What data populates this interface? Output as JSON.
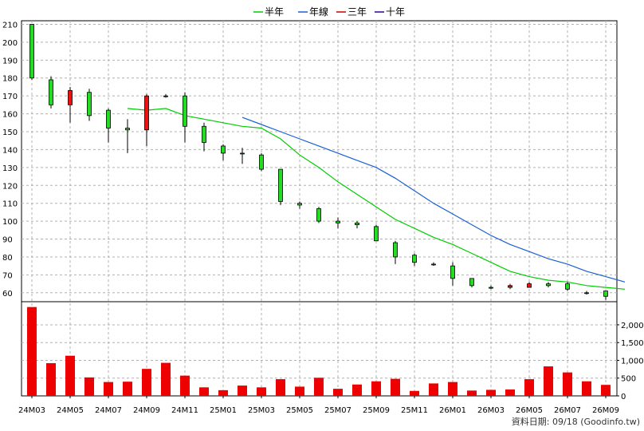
{
  "chart_data": {
    "type": "candlestick-with-volume",
    "legend": [
      {
        "name": "半年",
        "color": "#00cc00"
      },
      {
        "name": "年線",
        "color": "#1a5fd6"
      },
      {
        "name": "三年",
        "color": "#cc0000"
      },
      {
        "name": "十年",
        "color": "#330099"
      }
    ],
    "price_axis": {
      "ylim": [
        55,
        212
      ],
      "ticks": [
        60,
        70,
        80,
        90,
        100,
        110,
        120,
        130,
        140,
        150,
        160,
        170,
        180,
        190,
        200,
        210
      ]
    },
    "volume_axis": {
      "ylim": [
        0,
        2650
      ],
      "ticks": [
        0,
        500,
        1000,
        1500,
        2000
      ],
      "tick_labels": [
        "0",
        "500",
        "1,000",
        "1,500",
        "2,000"
      ]
    },
    "x_labels": [
      "24M03",
      "24M05",
      "24M07",
      "24M09",
      "24M11",
      "25M01",
      "25M03",
      "25M05",
      "25M07",
      "25M09",
      "25M11",
      "26M01",
      "26M03",
      "26M05",
      "26M07",
      "26M09"
    ],
    "candles": [
      {
        "m": "24M03",
        "o": 180,
        "h": 210,
        "l": 179,
        "c": 210
      },
      {
        "m": "24M04",
        "o": 165,
        "h": 181,
        "l": 163,
        "c": 179
      },
      {
        "m": "24M05",
        "o": 173,
        "h": 175,
        "l": 155,
        "c": 165
      },
      {
        "m": "24M06",
        "o": 159,
        "h": 174,
        "l": 156,
        "c": 172
      },
      {
        "m": "24M07",
        "o": 152,
        "h": 163,
        "l": 144,
        "c": 162
      },
      {
        "m": "24M08",
        "o": 151,
        "h": 157,
        "l": 138,
        "c": 152
      },
      {
        "m": "24M09",
        "o": 170,
        "h": 171,
        "l": 142,
        "c": 151
      },
      {
        "m": "24M10",
        "o": 170,
        "h": 171,
        "l": 169,
        "c": 170
      },
      {
        "m": "24M11",
        "o": 153,
        "h": 172,
        "l": 144,
        "c": 170
      },
      {
        "m": "24M12",
        "o": 144,
        "h": 155,
        "l": 139,
        "c": 153
      },
      {
        "m": "25M01",
        "o": 138,
        "h": 143,
        "l": 134,
        "c": 142
      },
      {
        "m": "25M02",
        "o": 138,
        "h": 141,
        "l": 132,
        "c": 138
      },
      {
        "m": "25M03",
        "o": 129,
        "h": 138,
        "l": 128,
        "c": 137
      },
      {
        "m": "25M04",
        "o": 111,
        "h": 129,
        "l": 109,
        "c": 129
      },
      {
        "m": "25M05",
        "o": 109,
        "h": 111,
        "l": 107,
        "c": 110
      },
      {
        "m": "25M06",
        "o": 100,
        "h": 108,
        "l": 99,
        "c": 107
      },
      {
        "m": "25M07",
        "o": 99,
        "h": 102,
        "l": 96,
        "c": 100
      },
      {
        "m": "25M08",
        "o": 98,
        "h": 100,
        "l": 96,
        "c": 99
      },
      {
        "m": "25M09",
        "o": 89,
        "h": 98,
        "l": 89,
        "c": 97
      },
      {
        "m": "25M10",
        "o": 80,
        "h": 89,
        "l": 76,
        "c": 88
      },
      {
        "m": "25M11",
        "o": 77,
        "h": 82,
        "l": 75,
        "c": 81
      },
      {
        "m": "25M12",
        "o": 76,
        "h": 77,
        "l": 75,
        "c": 76
      },
      {
        "m": "26M01",
        "o": 68,
        "h": 77,
        "l": 64,
        "c": 75
      },
      {
        "m": "26M02",
        "o": 64,
        "h": 68,
        "l": 63,
        "c": 68
      },
      {
        "m": "26M03",
        "o": 63,
        "h": 64,
        "l": 62,
        "c": 63
      },
      {
        "m": "26M04",
        "o": 64,
        "h": 65,
        "l": 62,
        "c": 63
      },
      {
        "m": "26M05",
        "o": 65,
        "h": 66,
        "l": 63,
        "c": 63
      },
      {
        "m": "26M06",
        "o": 64,
        "h": 66,
        "l": 63,
        "c": 65
      },
      {
        "m": "26M07",
        "o": 62,
        "h": 66,
        "l": 61,
        "c": 65
      },
      {
        "m": "26M08",
        "o": 60,
        "h": 61,
        "l": 59,
        "c": 60
      },
      {
        "m": "26M09",
        "o": 58,
        "h": 61,
        "l": 56,
        "c": 61
      }
    ],
    "volume": [
      2500,
      920,
      1130,
      520,
      390,
      400,
      760,
      930,
      570,
      240,
      160,
      290,
      240,
      470,
      260,
      510,
      200,
      320,
      410,
      480,
      140,
      350,
      390,
      150,
      170,
      180,
      470,
      830,
      660,
      410,
      310
    ],
    "ma_series": [
      {
        "name": "半年",
        "start_index": 5,
        "values": [
          163,
          162,
          163,
          159,
          157,
          155,
          153,
          152,
          146,
          137,
          130,
          122,
          115,
          108,
          101,
          96,
          91,
          87,
          82,
          77,
          72,
          69,
          67,
          66,
          64,
          63,
          62
        ]
      },
      {
        "name": "年線",
        "start_index": 11,
        "values": [
          158,
          154,
          150,
          146,
          142,
          138,
          134,
          130,
          124,
          117,
          110,
          104,
          98,
          92,
          87,
          83,
          79,
          76,
          72,
          69,
          66
        ]
      }
    ],
    "footer": "資料日期: 09/18 (Goodinfo.tw)"
  }
}
